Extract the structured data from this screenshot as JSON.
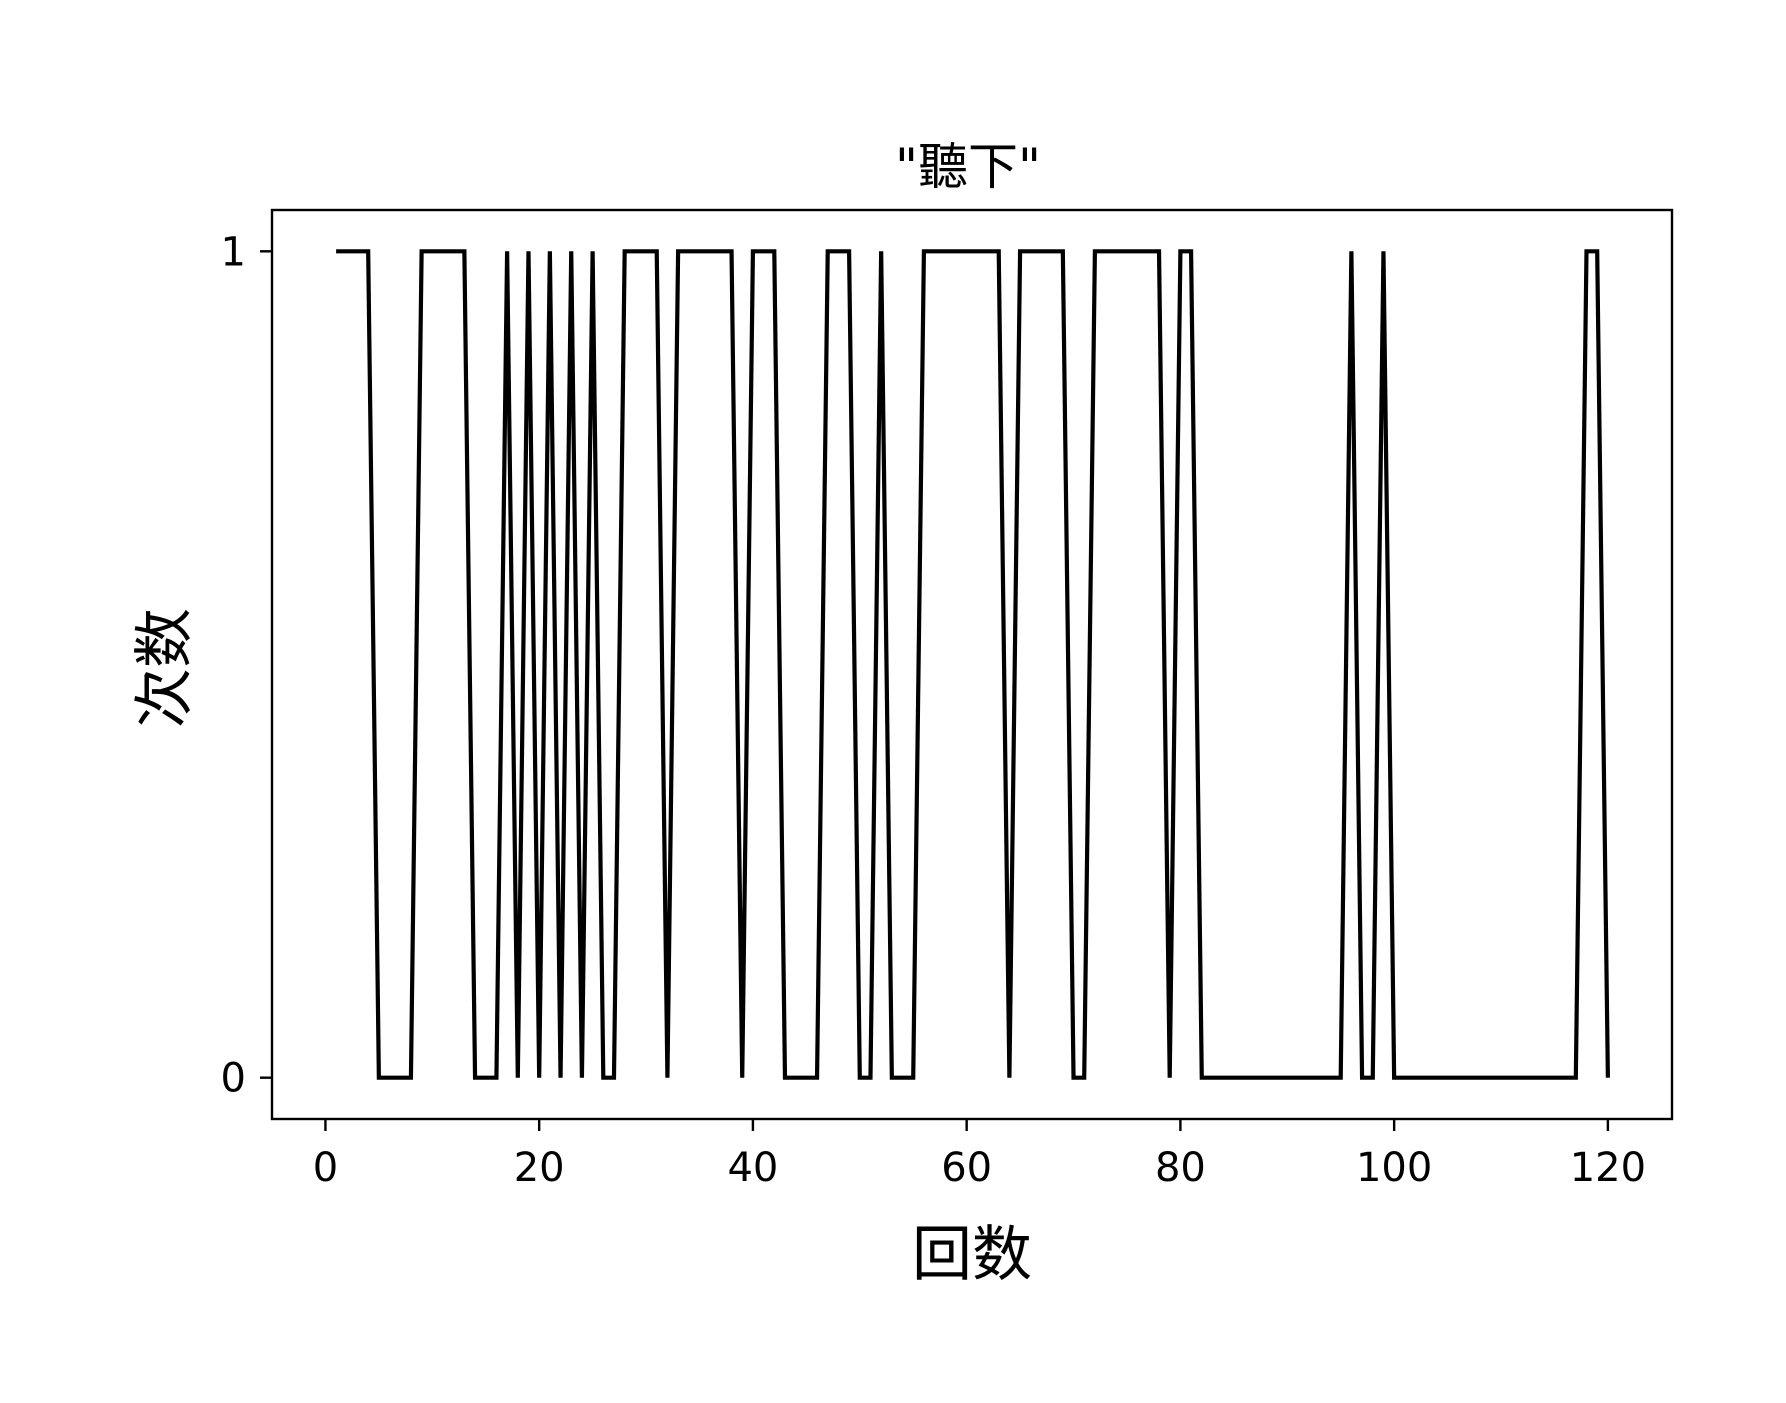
{
  "chart_data": {
    "type": "line",
    "title": "\"聽下\"",
    "xlabel": "回数",
    "ylabel": "次数",
    "xlim": [
      -5,
      126
    ],
    "ylim": [
      -0.05,
      1.05
    ],
    "xticks": [
      "0",
      "20",
      "40",
      "60",
      "80",
      "100",
      "120"
    ],
    "yticks": [
      "0",
      "1"
    ],
    "grid": false,
    "series": [
      {
        "color": "#000000",
        "x": [
          1,
          2,
          3,
          4,
          5,
          6,
          7,
          8,
          9,
          10,
          11,
          12,
          13,
          14,
          15,
          16,
          17,
          18,
          19,
          20,
          21,
          22,
          23,
          24,
          25,
          26,
          27,
          28,
          29,
          30,
          31,
          32,
          33,
          34,
          35,
          36,
          37,
          38,
          39,
          40,
          41,
          42,
          43,
          44,
          45,
          46,
          47,
          48,
          49,
          50,
          51,
          52,
          53,
          54,
          55,
          56,
          57,
          58,
          59,
          60,
          61,
          62,
          63,
          64,
          65,
          66,
          67,
          68,
          69,
          70,
          71,
          72,
          73,
          74,
          75,
          76,
          77,
          78,
          79,
          80,
          81,
          82,
          83,
          84,
          85,
          86,
          87,
          88,
          89,
          90,
          91,
          92,
          93,
          94,
          95,
          96,
          97,
          98,
          99,
          100,
          101,
          102,
          103,
          104,
          105,
          106,
          107,
          108,
          109,
          110,
          111,
          112,
          113,
          114,
          115,
          116,
          117,
          118,
          119,
          120
        ],
        "y": [
          1,
          1,
          1,
          1,
          0,
          0,
          0,
          0,
          1,
          1,
          1,
          1,
          1,
          0,
          0,
          0,
          1,
          0,
          1,
          0,
          1,
          0,
          1,
          0,
          1,
          0,
          0,
          1,
          1,
          1,
          1,
          0,
          1,
          1,
          1,
          1,
          1,
          1,
          0,
          1,
          1,
          1,
          0,
          0,
          0,
          0,
          1,
          1,
          1,
          0,
          0,
          1,
          0,
          0,
          0,
          1,
          1,
          1,
          1,
          1,
          1,
          1,
          1,
          0,
          1,
          1,
          1,
          1,
          1,
          0,
          0,
          1,
          1,
          1,
          1,
          1,
          1,
          1,
          0,
          1,
          1,
          0,
          0,
          0,
          0,
          0,
          0,
          0,
          0,
          0,
          0,
          0,
          0,
          0,
          0,
          1,
          0,
          0,
          1,
          0,
          0,
          0,
          0,
          0,
          0,
          0,
          0,
          0,
          0,
          0,
          0,
          0,
          0,
          0,
          0,
          0,
          0,
          1,
          1,
          0
        ]
      }
    ]
  }
}
